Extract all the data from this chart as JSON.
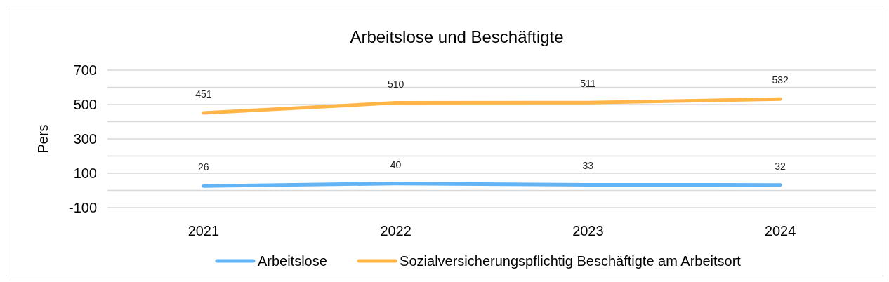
{
  "chart_data": {
    "type": "line",
    "title": "Arbeitslose und Beschäftigte",
    "ylabel": "Pers",
    "categories": [
      "2021",
      "2022",
      "2023",
      "2024"
    ],
    "series": [
      {
        "name": "Arbeitslose",
        "color": "#63b4f5",
        "values": [
          26,
          40,
          33,
          32
        ]
      },
      {
        "name": "Sozialversicherungspflichtig Beschäftigte am Arbeitsort",
        "color": "#ffb547",
        "values": [
          451,
          510,
          511,
          532
        ]
      }
    ],
    "ylim": [
      -100,
      700
    ],
    "yticks": [
      -100,
      {
        "value": 0,
        "label": null
      },
      100,
      {
        "value": 200,
        "label": null
      },
      300,
      {
        "value": 400,
        "label": null
      },
      500,
      {
        "value": 600,
        "label": null
      },
      700
    ],
    "grid": "y",
    "legend": "bottom",
    "data_labels": true,
    "marker": "none",
    "line_style": "solid"
  }
}
